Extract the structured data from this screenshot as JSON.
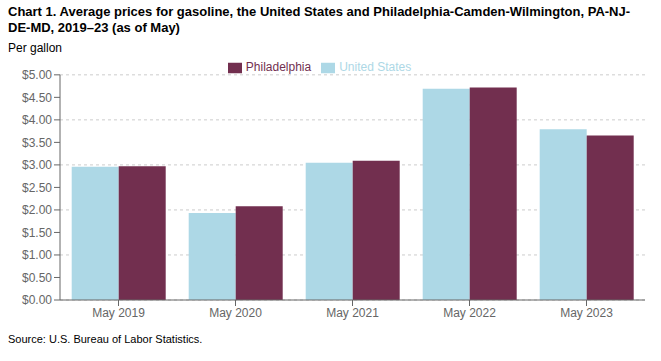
{
  "chart_data": {
    "type": "bar",
    "title": "Chart 1. Average prices for gasoline, the United States and Philadelphia-Camden-Wilmington, PA-NJ-DE-MD, 2019–23 (as of May)",
    "y_label": "Per gallon",
    "source": "Source: U.S. Bureau of Labor Statistics.",
    "categories": [
      "May 2019",
      "May 2020",
      "May 2021",
      "May 2022",
      "May 2023"
    ],
    "series": [
      {
        "name": "United States",
        "color": "#add8e6",
        "values": [
          2.96,
          1.93,
          3.05,
          4.69,
          3.79
        ]
      },
      {
        "name": "Philadelphia",
        "color": "#722F4F",
        "values": [
          2.97,
          2.08,
          3.09,
          4.72,
          3.65
        ]
      }
    ],
    "ylim": [
      0,
      5.0
    ],
    "yticks": [
      {
        "value": 0.0,
        "label": "$0.00"
      },
      {
        "value": 0.5,
        "label": "$0.50"
      },
      {
        "value": 1.0,
        "label": "$1.00"
      },
      {
        "value": 1.5,
        "label": "$1.50"
      },
      {
        "value": 2.0,
        "label": "$2.00"
      },
      {
        "value": 2.5,
        "label": "$2.50"
      },
      {
        "value": 3.0,
        "label": "$3.00"
      },
      {
        "value": 3.5,
        "label": "$3.50"
      },
      {
        "value": 4.0,
        "label": "$4.00"
      },
      {
        "value": 4.5,
        "label": "$4.50"
      },
      {
        "value": 5.0,
        "label": "$5.00"
      }
    ],
    "grid": true,
    "legend": "top"
  }
}
